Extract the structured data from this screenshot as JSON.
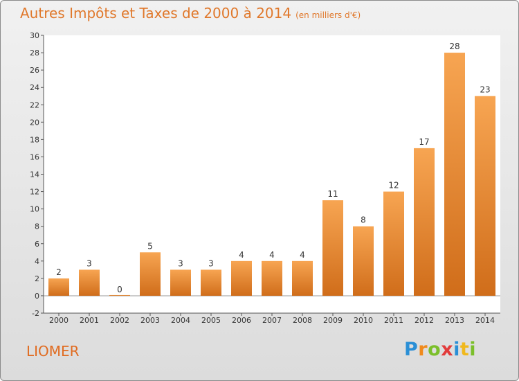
{
  "header": {
    "title": "Autres Impôts et Taxes de 2000 à 2014",
    "unit": "(en milliers d'€)"
  },
  "footer": {
    "commune": "LIOMER",
    "brand": "Proxiti"
  },
  "colors": {
    "bar": "#e8842e",
    "title": "#e0782b",
    "commune": "#e06b20"
  },
  "chart_data": {
    "type": "bar",
    "title": "Autres Impôts et Taxes de 2000 à 2014",
    "subtitle": "(en milliers d'€)",
    "xlabel": "",
    "ylabel": "",
    "categories": [
      "2000",
      "2001",
      "2002",
      "2003",
      "2004",
      "2005",
      "2006",
      "2007",
      "2008",
      "2009",
      "2010",
      "2011",
      "2012",
      "2013",
      "2014"
    ],
    "values": [
      2,
      3,
      0,
      5,
      3,
      3,
      4,
      4,
      4,
      11,
      8,
      12,
      17,
      28,
      23
    ],
    "ylim": [
      -2,
      30
    ],
    "yticks": [
      -2,
      0,
      2,
      4,
      6,
      8,
      10,
      12,
      14,
      16,
      18,
      20,
      22,
      24,
      26,
      28,
      30
    ],
    "grid": false,
    "data_labels": true
  }
}
